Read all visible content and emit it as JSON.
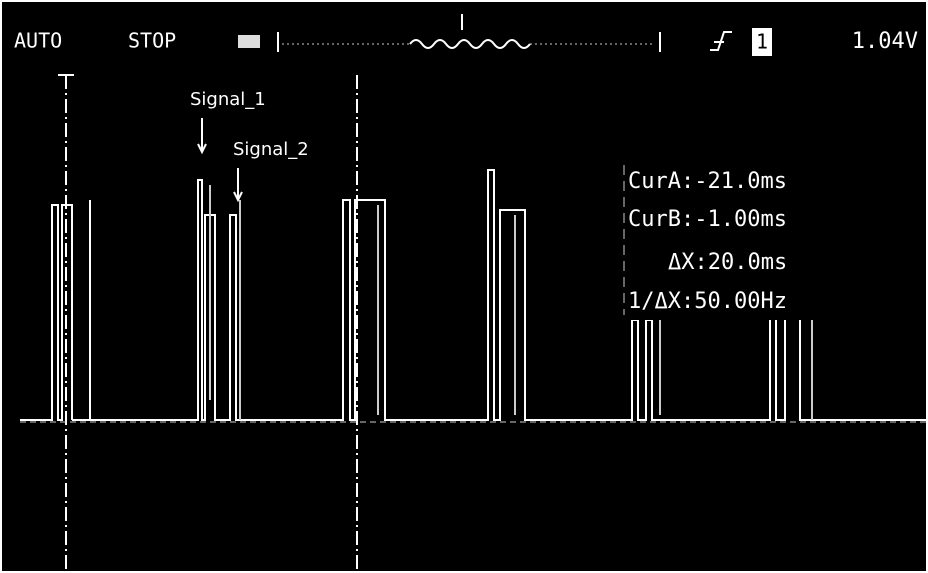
{
  "header": {
    "mode": "AUTO",
    "state": "STOP",
    "trigger_source": "1",
    "trigger_level": "1.04V"
  },
  "labels": {
    "signal_1": "Signal_1",
    "signal_2": "Signal_2"
  },
  "cursors": {
    "cur_a": "CurA:-21.0ms",
    "cur_b": "CurB:-1.00ms",
    "delta_x": "ΔX:20.0ms",
    "inverse_delta_x": "1/ΔX:50.00Hz"
  }
}
